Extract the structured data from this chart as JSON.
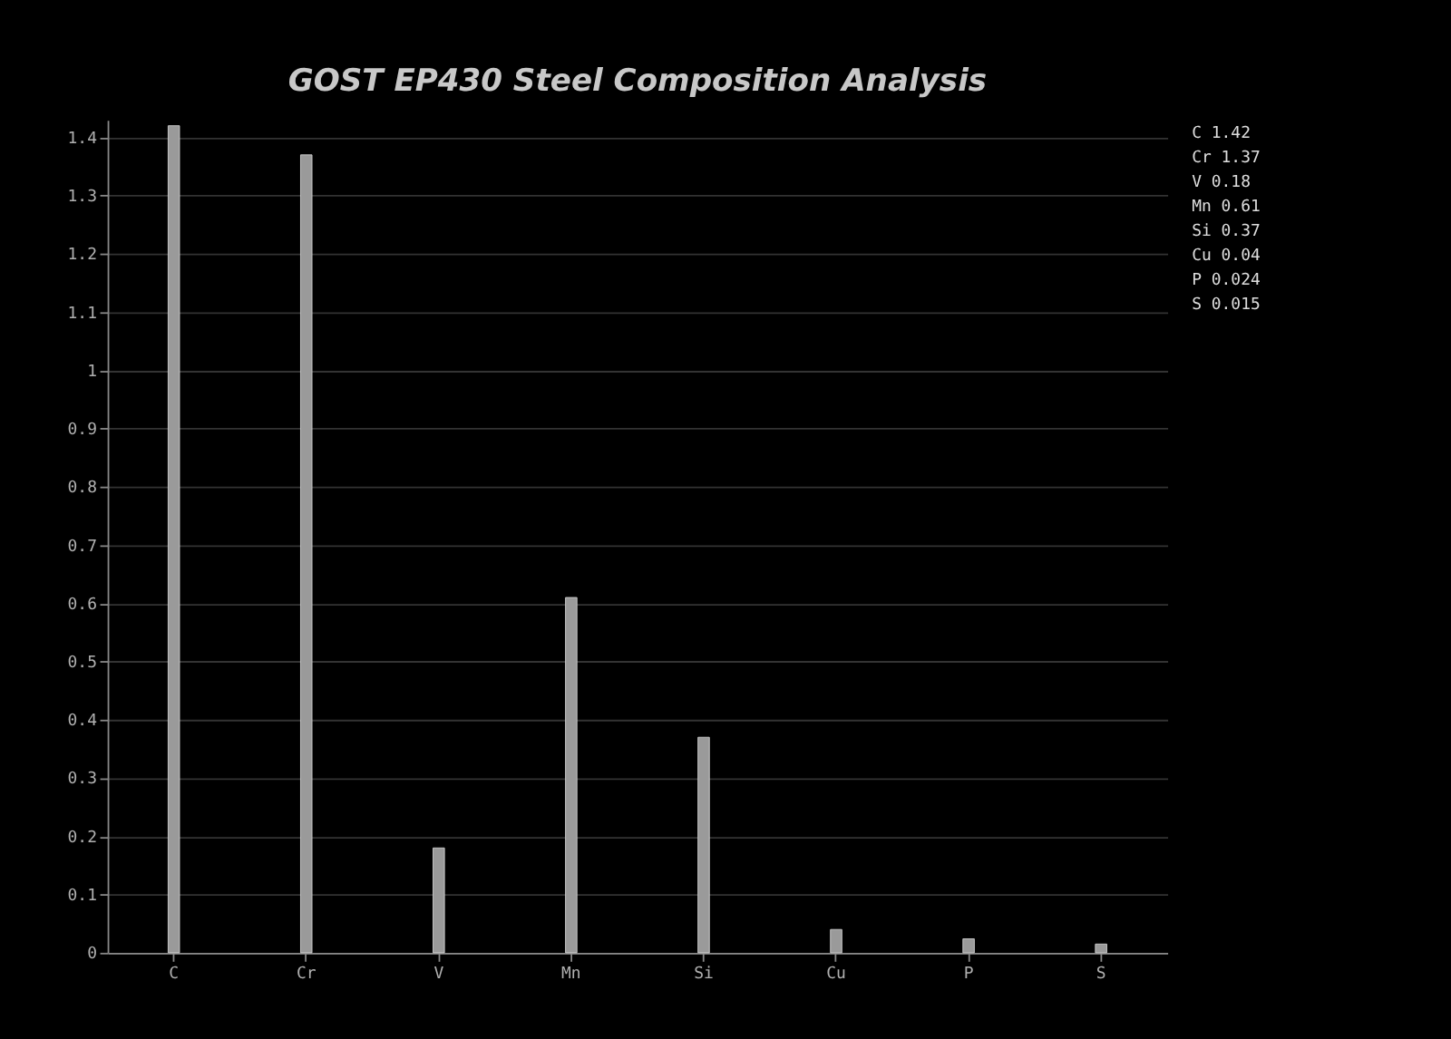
{
  "chart_data": {
    "type": "bar",
    "title": "GOST EP430 Steel Composition Analysis",
    "categories": [
      "C",
      "Cr",
      "V",
      "Mn",
      "Si",
      "Cu",
      "P",
      "S"
    ],
    "values": [
      1.42,
      1.37,
      0.18,
      0.61,
      0.37,
      0.04,
      0.024,
      0.015
    ],
    "color": "#9a9a9a",
    "ylim": [
      0,
      1.43
    ],
    "yticks": [
      0,
      0.1,
      0.2,
      0.3,
      0.4,
      0.5,
      0.6,
      0.7,
      0.8,
      0.9,
      1,
      1.1,
      1.2,
      1.3,
      1.4
    ],
    "grid": "y",
    "annotations": [
      "C  1.42",
      "Cr 1.37",
      "V  0.18",
      "Mn 0.61",
      "Si 0.37",
      "Cu 0.04",
      "P  0.024",
      "S  0.015"
    ]
  }
}
